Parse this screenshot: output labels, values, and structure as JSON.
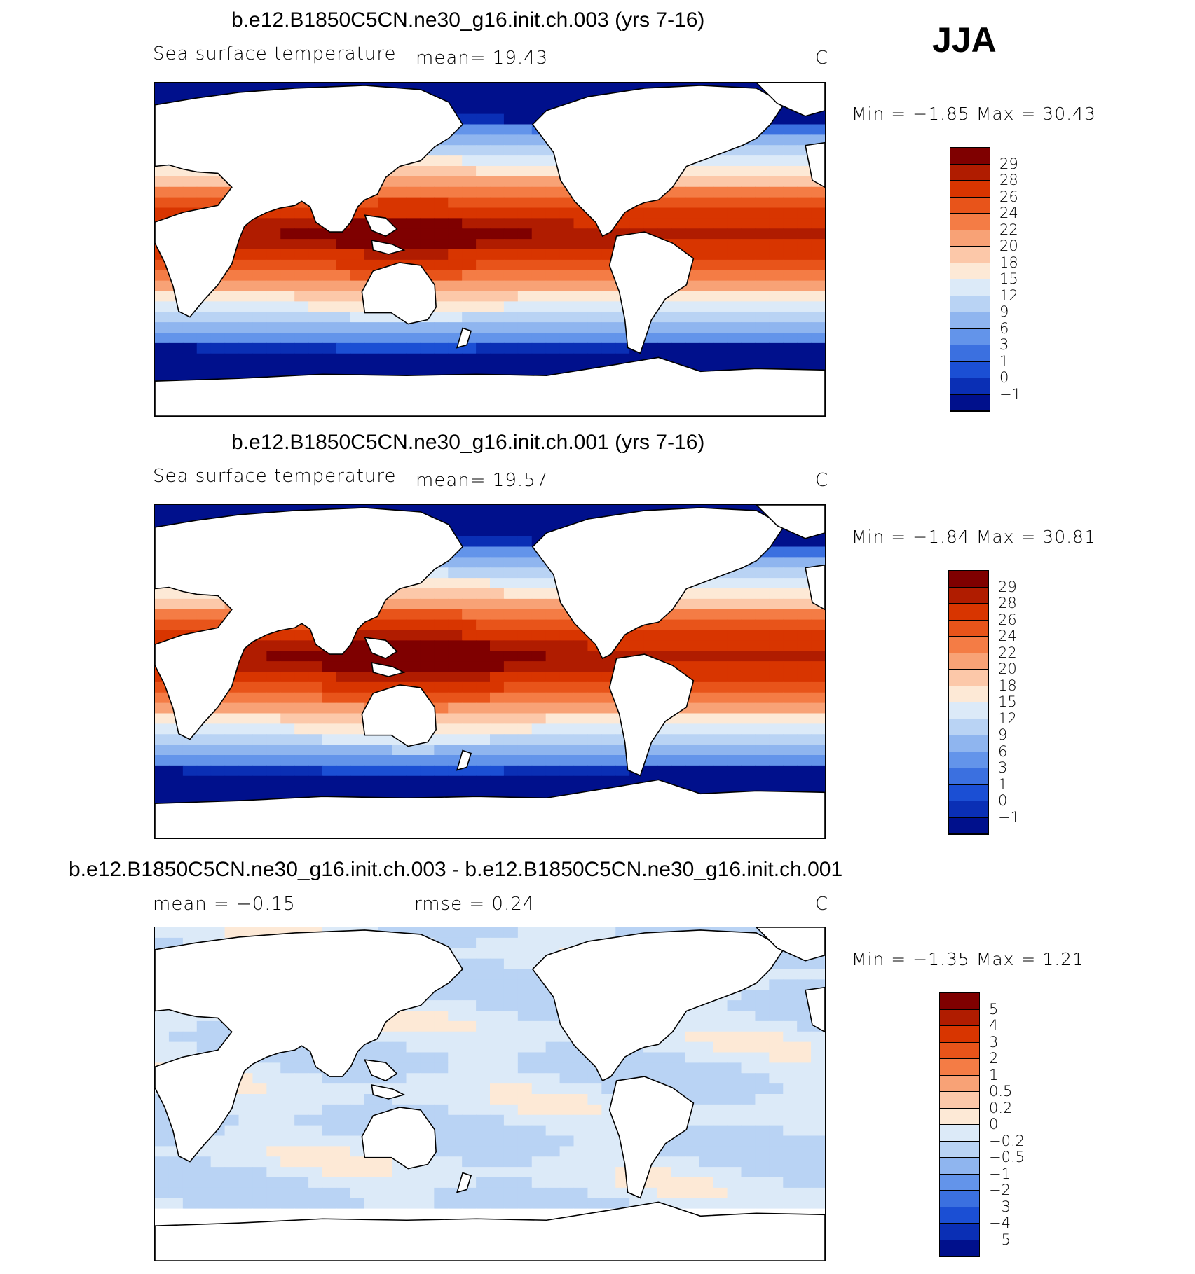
{
  "season": "JJA",
  "panels": [
    {
      "title": "b.e12.B1850C5CN.ne30_g16.init.ch.003 (yrs 7-16)",
      "variable": "Sea surface temperature",
      "stat1": "mean=   19.43",
      "stat2": "",
      "units": "C",
      "minmax": "Min =   −1.85  Max =   30.43",
      "colorbar_labels": [
        "29",
        "28",
        "26",
        "24",
        "22",
        "20",
        "18",
        "15",
        "12",
        "9",
        "6",
        "3",
        "1",
        "0",
        "−1"
      ]
    },
    {
      "title": "b.e12.B1850C5CN.ne30_g16.init.ch.001 (yrs 7-16)",
      "variable": "Sea surface temperature",
      "stat1": "mean=   19.57",
      "stat2": "",
      "units": "C",
      "minmax": "Min =   −1.84  Max =   30.81",
      "colorbar_labels": [
        "29",
        "28",
        "26",
        "24",
        "22",
        "20",
        "18",
        "15",
        "12",
        "9",
        "6",
        "3",
        "1",
        "0",
        "−1"
      ]
    },
    {
      "title": "b.e12.B1850C5CN.ne30_g16.init.ch.003 - b.e12.B1850C5CN.ne30_g16.init.ch.001",
      "variable": "",
      "stat1": "mean =   −0.15",
      "stat2": "rmse =   0.24",
      "units": "C",
      "minmax": "Min =   −1.35  Max =   1.21",
      "colorbar_labels": [
        "5",
        "4",
        "3",
        "2",
        "1",
        "0.5",
        "0.2",
        "0",
        "−0.2",
        "−0.5",
        "−1",
        "−2",
        "−3",
        "−4",
        "−5"
      ]
    }
  ],
  "colors": {
    "sst_scale": [
      "#7f0000",
      "#b01c00",
      "#d83500",
      "#e8541a",
      "#f47c45",
      "#f8a276",
      "#fcc8a9",
      "#fde9d6",
      "#dceaf8",
      "#b9d3f4",
      "#8fb5ef",
      "#6394ea",
      "#3b70e0",
      "#1b4fd4",
      "#0a2fb5",
      "#00108c"
    ],
    "diff_scale": [
      "#7f0000",
      "#b01c00",
      "#d83500",
      "#e8541a",
      "#f47c45",
      "#f8a276",
      "#fcc8a9",
      "#fde9d6",
      "#dceaf8",
      "#b9d3f4",
      "#8fb5ef",
      "#6394ea",
      "#3b70e0",
      "#1b4fd4",
      "#0a2fb5",
      "#00108c"
    ],
    "land": "#ffffff",
    "coast": "#000000"
  }
}
